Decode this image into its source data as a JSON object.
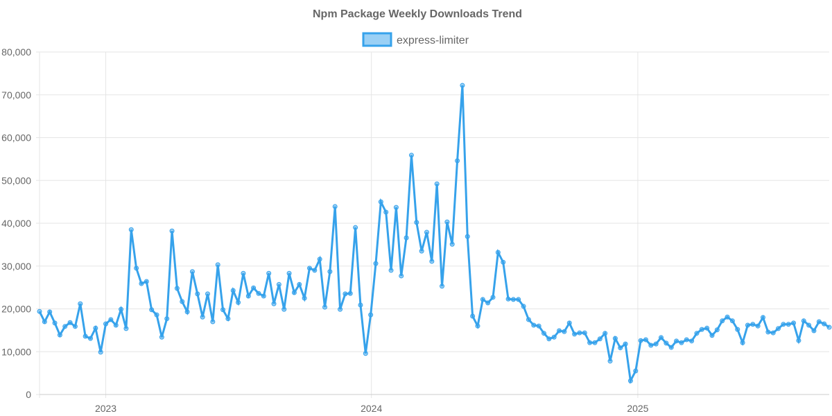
{
  "chart_data": {
    "type": "line",
    "title": "Npm Package Weekly Downloads Trend",
    "xlabel": "",
    "ylabel": "",
    "ylim": [
      0,
      80000
    ],
    "yticks": [
      0,
      10000,
      20000,
      30000,
      40000,
      50000,
      60000,
      70000,
      80000
    ],
    "ytick_labels": [
      "0",
      "10,000",
      "20,000",
      "30,000",
      "40,000",
      "50,000",
      "60,000",
      "70,000",
      "80,000"
    ],
    "x_range": [
      "2022-10-02",
      "2025-09-21"
    ],
    "xticks": [
      {
        "date": "2023-01-01",
        "label": "2023"
      },
      {
        "date": "2024-01-01",
        "label": "2024"
      },
      {
        "date": "2025-01-01",
        "label": "2025"
      }
    ],
    "x_start": "2022-10-02",
    "x_interval_days": 7,
    "grid": true,
    "legend_position": "top",
    "colors": {
      "line": "#36a2eb",
      "fill": "rgba(54,162,235,0.5)"
    },
    "series": [
      {
        "name": "express-limiter",
        "values": [
          19400,
          17000,
          19300,
          16700,
          13900,
          15900,
          16800,
          15900,
          21200,
          13600,
          13100,
          15500,
          9900,
          16500,
          17500,
          16200,
          19900,
          15400,
          38500,
          29500,
          25900,
          26400,
          19800,
          18600,
          13400,
          17700,
          38200,
          24800,
          21700,
          19300,
          28700,
          23500,
          18100,
          23500,
          17000,
          30300,
          19800,
          17700,
          24300,
          21500,
          28300,
          23000,
          24900,
          23600,
          23000,
          28300,
          21200,
          25700,
          19900,
          28300,
          23800,
          25700,
          22500,
          29500,
          29000,
          31600,
          20400,
          28700,
          43900,
          19900,
          23500,
          23600,
          39000,
          20900,
          9600,
          18600,
          30600,
          45000,
          42600,
          29000,
          43700,
          27700,
          36600,
          55900,
          40200,
          33500,
          37900,
          31100,
          49200,
          25300,
          40300,
          35100,
          54600,
          72200,
          36900,
          18300,
          16000,
          22200,
          21400,
          22700,
          33200,
          30900,
          22300,
          22200,
          22200,
          20600,
          17500,
          16200,
          16000,
          14300,
          13000,
          13400,
          14900,
          14700,
          16700,
          14100,
          14400,
          14400,
          12100,
          12100,
          13000,
          14300,
          7800,
          13100,
          10900,
          11800,
          3200,
          5500,
          12600,
          12800,
          11500,
          11800,
          13300,
          12000,
          11000,
          12500,
          12100,
          12800,
          12500,
          14300,
          15200,
          15500,
          13800,
          15100,
          17200,
          18100,
          17200,
          15200,
          12100,
          16200,
          16400,
          16000,
          18000,
          14600,
          14400,
          15400,
          16400,
          16400,
          16700,
          12600,
          17200,
          16200,
          14900,
          17000,
          16500,
          15700
        ]
      }
    ]
  }
}
